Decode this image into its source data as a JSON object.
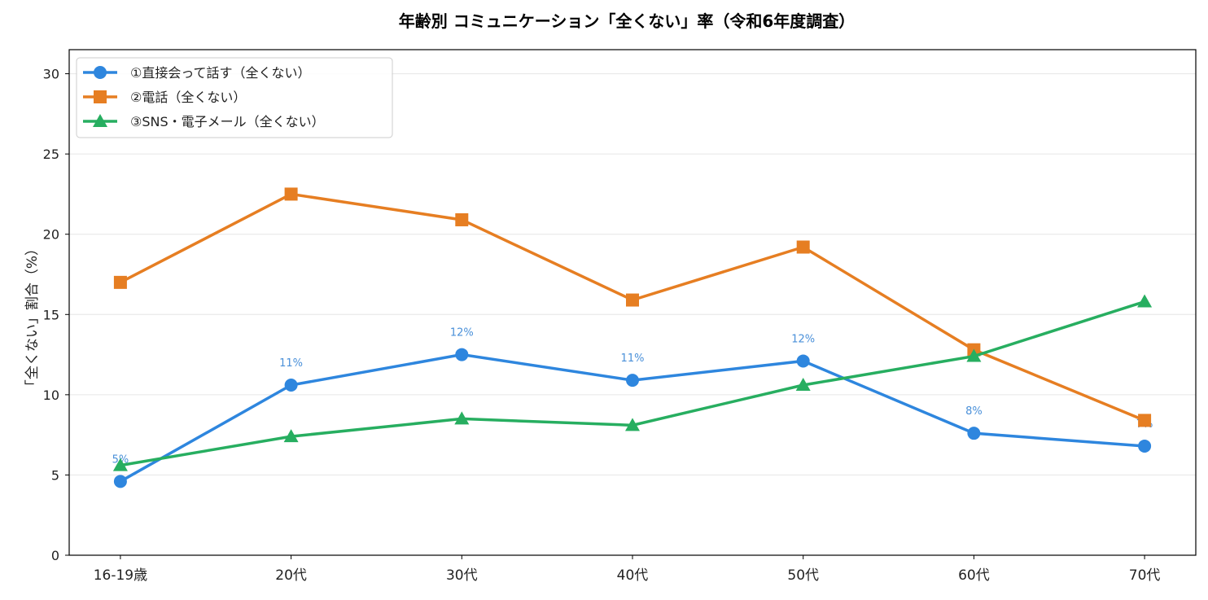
{
  "chart_data": {
    "type": "line",
    "title": "年齢別 コミュニケーション「全くない」率（令和6年度調査）",
    "xlabel": "",
    "ylabel": "「全くない」割合（%）",
    "categories": [
      "16-19歳",
      "20代",
      "30代",
      "40代",
      "50代",
      "60代",
      "70代"
    ],
    "ylim": [
      0,
      31.5
    ],
    "yticks": [
      0,
      5,
      10,
      15,
      20,
      25,
      30
    ],
    "grid": "horizontal",
    "legend": "top-left",
    "series": [
      {
        "name": "①直接会って話す（全くない）",
        "color": "#2e86de",
        "marker": "circle",
        "values": [
          4.6,
          10.6,
          12.5,
          10.9,
          12.1,
          7.6,
          6.8
        ],
        "data_labels": [
          "5%",
          "11%",
          "12%",
          "11%",
          "12%",
          "8%",
          "7%"
        ]
      },
      {
        "name": "②電話（全くない）",
        "color": "#e67e22",
        "marker": "square",
        "values": [
          17.0,
          22.5,
          20.9,
          15.9,
          19.2,
          12.8,
          8.4
        ]
      },
      {
        "name": "③SNS・電子メール（全くない）",
        "color": "#27ae60",
        "marker": "triangle",
        "values": [
          5.6,
          7.4,
          8.5,
          8.1,
          10.6,
          12.4,
          15.8
        ]
      }
    ]
  }
}
